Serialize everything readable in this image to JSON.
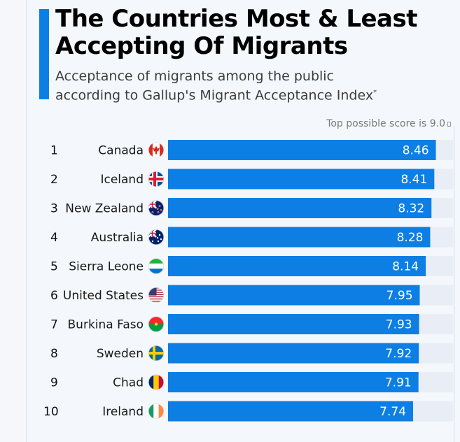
{
  "header": {
    "title_line1": "The Countries Most & Least",
    "title_line2": "Accepting Of Migrants",
    "subtitle_line1": "Acceptance of migrants among the public",
    "subtitle_line2": "according to Gallup's Migrant Acceptance Index",
    "subtitle_mark": "*",
    "note": "Top possible score is 9.0"
  },
  "colors": {
    "accent": "#0d7fe4",
    "bar": "#0d7fe4",
    "track": "#e9eef6",
    "value_text": "#ffffff"
  },
  "chart_data": {
    "type": "bar",
    "orientation": "horizontal",
    "title": "The Countries Most & Least Accepting Of Migrants",
    "subtitle": "Acceptance of migrants among the public according to Gallup's Migrant Acceptance Index*",
    "xlim": [
      0,
      9.0
    ],
    "annotation": "Top possible score is 9.0",
    "categories": [
      "Canada",
      "Iceland",
      "New Zealand",
      "Australia",
      "Sierra Leone",
      "United States",
      "Burkina Faso",
      "Sweden",
      "Chad",
      "Ireland"
    ],
    "ranks": [
      "1",
      "2",
      "3",
      "4",
      "5",
      "6",
      "7",
      "8",
      "9",
      "10"
    ],
    "values": [
      8.46,
      8.41,
      8.32,
      8.28,
      8.14,
      7.95,
      7.93,
      7.92,
      7.91,
      7.74
    ],
    "value_labels": [
      "8.46",
      "8.41",
      "8.32",
      "8.28",
      "8.14",
      "7.95",
      "7.93",
      "7.92",
      "7.91",
      "7.74"
    ],
    "flags": [
      "canada-flag",
      "iceland-flag",
      "new-zealand-flag",
      "australia-flag",
      "sierra-leone-flag",
      "united-states-flag",
      "burkina-faso-flag",
      "sweden-flag",
      "chad-flag",
      "ireland-flag"
    ]
  }
}
